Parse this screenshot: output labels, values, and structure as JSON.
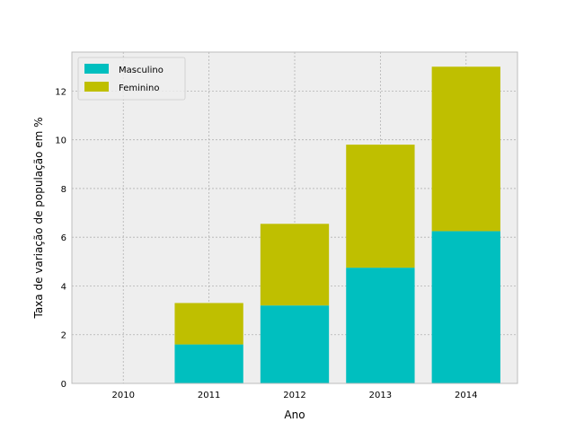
{
  "chart_data": {
    "type": "bar",
    "stacked": true,
    "title": "",
    "xlabel": "Ano",
    "ylabel": "Taxa de variação de população em %",
    "categories": [
      "2010",
      "2011",
      "2012",
      "2013",
      "2014"
    ],
    "series": [
      {
        "name": "Masculino",
        "color": "#00bfbf",
        "values": [
          0,
          1.6,
          3.2,
          4.75,
          6.25
        ]
      },
      {
        "name": "Feminino",
        "color": "#bfbf00",
        "values": [
          0,
          1.7,
          3.35,
          5.05,
          6.75
        ]
      }
    ],
    "ylim": [
      0,
      13.6
    ],
    "yticks": [
      0,
      2,
      4,
      6,
      8,
      10,
      12
    ],
    "grid": true,
    "legend": "top-left",
    "background": "#eeeeee",
    "grid_color": "#b2b2b2"
  }
}
